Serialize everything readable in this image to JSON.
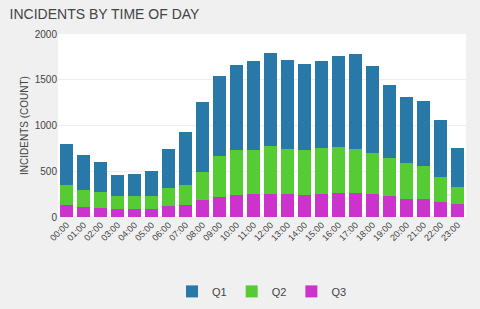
{
  "chart_data": {
    "type": "bar",
    "stacked": true,
    "title": "INCIDENTS BY TIME OF DAY",
    "ylabel": "INCIDENTS (COUNT)",
    "categories": [
      "00:00",
      "01:00",
      "02:00",
      "03:00",
      "04:00",
      "05:00",
      "06:00",
      "07:00",
      "08:00",
      "09:00",
      "10:00",
      "11:00",
      "12:00",
      "13:00",
      "14:00",
      "15:00",
      "16:00",
      "17:00",
      "18:00",
      "19:00",
      "20:00",
      "21:00",
      "22:00",
      "23:00"
    ],
    "series": [
      {
        "name": "Q3",
        "color": "#cc33cc",
        "values": [
          130,
          110,
          100,
          90,
          90,
          85,
          115,
          130,
          185,
          220,
          245,
          250,
          255,
          250,
          245,
          250,
          260,
          265,
          250,
          225,
          200,
          200,
          160,
          140
        ]
      },
      {
        "name": "Q2",
        "color": "#55cc33",
        "values": [
          220,
          185,
          175,
          135,
          135,
          145,
          200,
          220,
          310,
          450,
          490,
          480,
          520,
          490,
          490,
          500,
          500,
          480,
          450,
          420,
          390,
          360,
          280,
          185
        ]
      },
      {
        "name": "Q1",
        "color": "#2878a8",
        "values": [
          450,
          380,
          330,
          230,
          250,
          270,
          430,
          580,
          760,
          870,
          930,
          970,
          1020,
          980,
          940,
          950,
          1000,
          1040,
          950,
          800,
          720,
          710,
          620,
          430
        ]
      }
    ],
    "ylim": [
      0,
      2000
    ],
    "yticks": [
      0,
      500,
      1000,
      1500,
      2000
    ],
    "grid": true,
    "legend": "bottom"
  }
}
